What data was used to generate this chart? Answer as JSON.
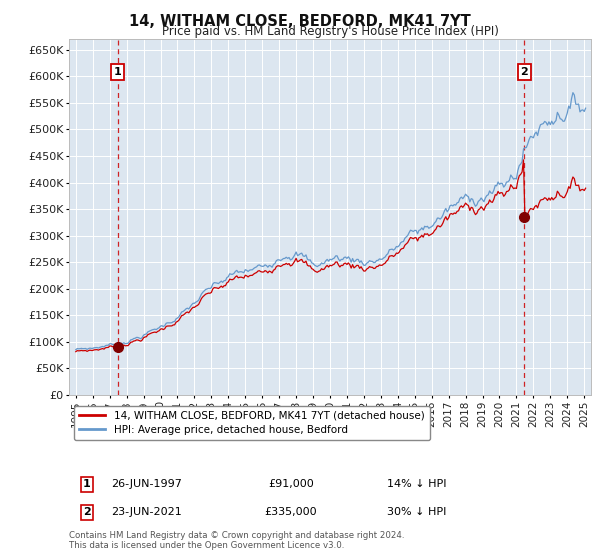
{
  "title": "14, WITHAM CLOSE, BEDFORD, MK41 7YT",
  "subtitle": "Price paid vs. HM Land Registry's House Price Index (HPI)",
  "background_color": "#dce6f0",
  "fig_bg_color": "#ffffff",
  "ylim": [
    0,
    670000
  ],
  "yticks": [
    0,
    50000,
    100000,
    150000,
    200000,
    250000,
    300000,
    350000,
    400000,
    450000,
    500000,
    550000,
    600000,
    650000
  ],
  "xlim_start": 1994.6,
  "xlim_end": 2025.4,
  "sale1_year": 1997.48,
  "sale1_price": 91000,
  "sale1_label": "1",
  "sale1_date": "26-JUN-1997",
  "sale1_pct": "14% ↓ HPI",
  "sale2_year": 2021.47,
  "sale2_price": 335000,
  "sale2_label": "2",
  "sale2_date": "23-JUN-2021",
  "sale2_pct": "30% ↓ HPI",
  "red_line_color": "#cc0000",
  "blue_line_color": "#6699cc",
  "dashed_line_color": "#cc0000",
  "legend_label1": "14, WITHAM CLOSE, BEDFORD, MK41 7YT (detached house)",
  "legend_label2": "HPI: Average price, detached house, Bedford",
  "footnote": "Contains HM Land Registry data © Crown copyright and database right 2024.\nThis data is licensed under the Open Government Licence v3.0.",
  "grid_color": "#ffffff",
  "marker_color": "#800000",
  "marker_size": 7
}
